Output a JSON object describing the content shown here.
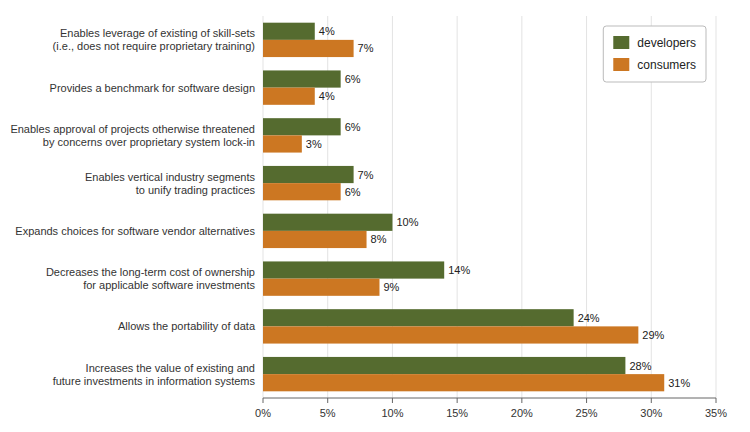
{
  "chart_data": {
    "type": "bar",
    "orientation": "horizontal",
    "categories": [
      "Enables leverage of existing of skill-sets\n(i.e., does not require proprietary training)",
      "Provides a benchmark for software design",
      "Enables approval of projects otherwise threatened\nby concerns over proprietary system lock-in",
      "Enables vertical industry segments\nto unify trading practices",
      "Expands choices for software vendor alternatives",
      "Decreases the long-term cost of ownership\nfor applicable software investments",
      "Allows the portability of data",
      "Increases the value of existing and\nfuture investments in information systems"
    ],
    "series": [
      {
        "name": "developers",
        "color": "#556B2F",
        "values": [
          4,
          6,
          6,
          7,
          10,
          14,
          24,
          28
        ],
        "value_labels": [
          "4%",
          "6%",
          "6%",
          "7%",
          "10%",
          "14%",
          "24%",
          "28%"
        ]
      },
      {
        "name": "consumers",
        "color": "#CC7722",
        "values": [
          7,
          4,
          3,
          6,
          8,
          9,
          29,
          31
        ],
        "value_labels": [
          "7%",
          "4%",
          "3%",
          "6%",
          "8%",
          "9%",
          "29%",
          "31%"
        ]
      }
    ],
    "xlim": [
      0,
      35
    ],
    "xticks": [
      {
        "value": 0,
        "label": "0%"
      },
      {
        "value": 5,
        "label": "5%"
      },
      {
        "value": 10,
        "label": "10%"
      },
      {
        "value": 15,
        "label": "15%"
      },
      {
        "value": 20,
        "label": "20%"
      },
      {
        "value": 25,
        "label": "25%"
      },
      {
        "value": 30,
        "label": "30%"
      },
      {
        "value": 35,
        "label": "35%"
      }
    ],
    "grid": true,
    "legend": "upper right",
    "data_labels": true
  }
}
